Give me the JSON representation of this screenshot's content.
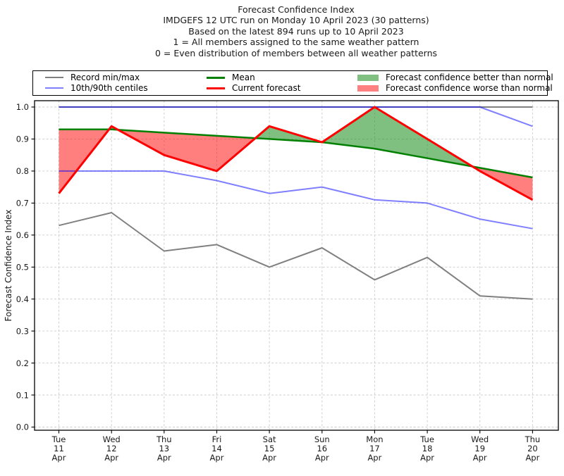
{
  "title": {
    "lines": [
      "Forecast Confidence Index",
      "IMDGEFS 12 UTC run on Monday 10 April 2023 (30 patterns)",
      "Based on the latest 894 runs up to 10 April 2023",
      "1 = All members assigned to the same weather pattern",
      "0 = Even distribution of members between all weather patterns"
    ]
  },
  "legend": {
    "items": [
      {
        "label": "Record min/max",
        "swatch": {
          "kind": "line",
          "color": "#808080",
          "width": 2
        }
      },
      {
        "label": "10th/90th centiles",
        "swatch": {
          "kind": "line",
          "color": "#8080ff",
          "width": 2
        }
      },
      {
        "label": "Mean",
        "swatch": {
          "kind": "line",
          "color": "#008000",
          "width": 3
        }
      },
      {
        "label": "Current forecast",
        "swatch": {
          "kind": "line",
          "color": "#ff0000",
          "width": 3
        }
      },
      {
        "label": "Forecast confidence better than normal",
        "swatch": {
          "kind": "patch",
          "color": "#80c080"
        }
      },
      {
        "label": "Forecast confidence worse than normal",
        "swatch": {
          "kind": "patch",
          "color": "#ff8080"
        }
      }
    ]
  },
  "chart_data": {
    "type": "line",
    "title": "Forecast Confidence Index",
    "xlabel": "",
    "ylabel": "Forecast Confidence Index",
    "ylim": [
      0.0,
      1.0
    ],
    "yticks": [
      0.0,
      0.1,
      0.2,
      0.3,
      0.4,
      0.5,
      0.6,
      0.7,
      0.8,
      0.9,
      1.0
    ],
    "grid": true,
    "grid_color": "#cccccc",
    "legend_position": "top",
    "categories": [
      {
        "day": "Tue",
        "date": "11",
        "month": "Apr"
      },
      {
        "day": "Wed",
        "date": "12",
        "month": "Apr"
      },
      {
        "day": "Thu",
        "date": "13",
        "month": "Apr"
      },
      {
        "day": "Fri",
        "date": "14",
        "month": "Apr"
      },
      {
        "day": "Sat",
        "date": "15",
        "month": "Apr"
      },
      {
        "day": "Sun",
        "date": "16",
        "month": "Apr"
      },
      {
        "day": "Mon",
        "date": "17",
        "month": "Apr"
      },
      {
        "day": "Tue",
        "date": "18",
        "month": "Apr"
      },
      {
        "day": "Wed",
        "date": "19",
        "month": "Apr"
      },
      {
        "day": "Thu",
        "date": "20",
        "month": "Apr"
      }
    ],
    "series": [
      {
        "name": "Record max",
        "color": "#808080",
        "opacity": 1,
        "width": 2,
        "values": [
          1.0,
          1.0,
          1.0,
          1.0,
          1.0,
          1.0,
          1.0,
          1.0,
          1.0,
          1.0
        ]
      },
      {
        "name": "Record min",
        "color": "#808080",
        "opacity": 1,
        "width": 2,
        "values": [
          0.63,
          0.67,
          0.55,
          0.57,
          0.5,
          0.56,
          0.46,
          0.53,
          0.41,
          0.4
        ]
      },
      {
        "name": "90th centile",
        "color": "#0000ff",
        "opacity": 0.5,
        "width": 2,
        "values": [
          1.0,
          1.0,
          1.0,
          1.0,
          1.0,
          1.0,
          1.0,
          1.0,
          1.0,
          0.94
        ]
      },
      {
        "name": "10th centile",
        "color": "#0000ff",
        "opacity": 0.5,
        "width": 2,
        "values": [
          0.8,
          0.8,
          0.8,
          0.77,
          0.73,
          0.75,
          0.71,
          0.7,
          0.65,
          0.62
        ]
      },
      {
        "name": "Mean",
        "color": "#008000",
        "opacity": 1,
        "width": 2.5,
        "values": [
          0.93,
          0.93,
          0.92,
          0.91,
          0.9,
          0.89,
          0.87,
          0.84,
          0.81,
          0.78
        ]
      },
      {
        "name": "Current forecast",
        "color": "#ff0000",
        "opacity": 1,
        "width": 3,
        "values": [
          0.73,
          0.94,
          0.85,
          0.8,
          0.94,
          0.89,
          1.0,
          0.9,
          0.8,
          0.71
        ]
      }
    ],
    "fills": {
      "between": [
        "Current forecast",
        "Mean"
      ],
      "better_color": "#008000",
      "worse_color": "#ff0000",
      "fill_opacity": 0.5
    }
  }
}
